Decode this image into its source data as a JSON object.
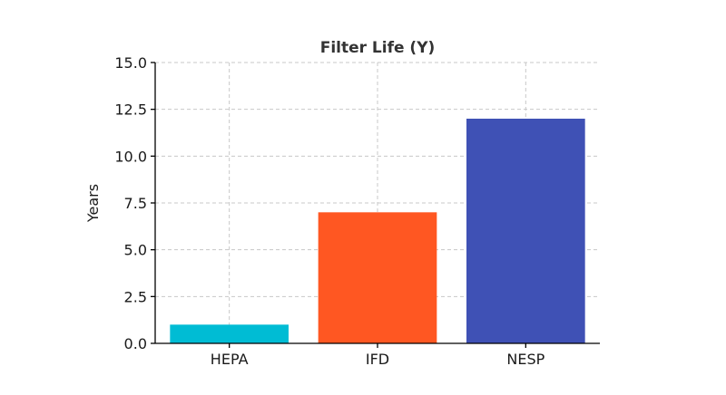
{
  "chart_data": {
    "type": "bar",
    "title": "Filter Life (Y)",
    "xlabel": "",
    "ylabel": "Years",
    "categories": [
      "HEPA",
      "IFD",
      "NESP"
    ],
    "values": [
      1,
      7,
      12
    ],
    "colors": [
      "#00bcd4",
      "#ff5722",
      "#3f51b5"
    ],
    "ylim": [
      0,
      15
    ],
    "yticks": [
      "0.0",
      "2.5",
      "5.0",
      "7.5",
      "10.0",
      "12.5",
      "15.0"
    ],
    "grid": true,
    "legend": "none"
  }
}
